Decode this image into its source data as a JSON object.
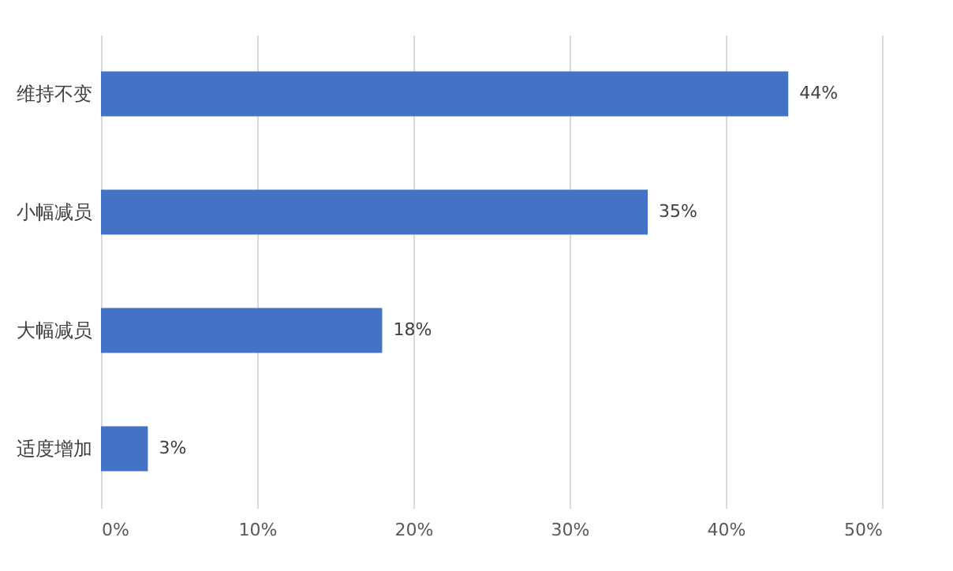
{
  "chart_data": {
    "type": "bar",
    "orientation": "horizontal",
    "categories": [
      "维持不变",
      "小幅减员",
      "大幅减员",
      "适度增加"
    ],
    "values": [
      44,
      35,
      18,
      3
    ],
    "color": "#4472c4",
    "value_labels": [
      "44%",
      "35%",
      "18%",
      "3%"
    ],
    "xlim": [
      0,
      50
    ],
    "xticks": [
      {
        "value": 0,
        "label": "0%"
      },
      {
        "value": 10,
        "label": "10%"
      },
      {
        "value": 20,
        "label": "20%"
      },
      {
        "value": 30,
        "label": "30%"
      },
      {
        "value": 40,
        "label": "40%"
      },
      {
        "value": 50,
        "label": "50%"
      }
    ],
    "grid": "x"
  }
}
